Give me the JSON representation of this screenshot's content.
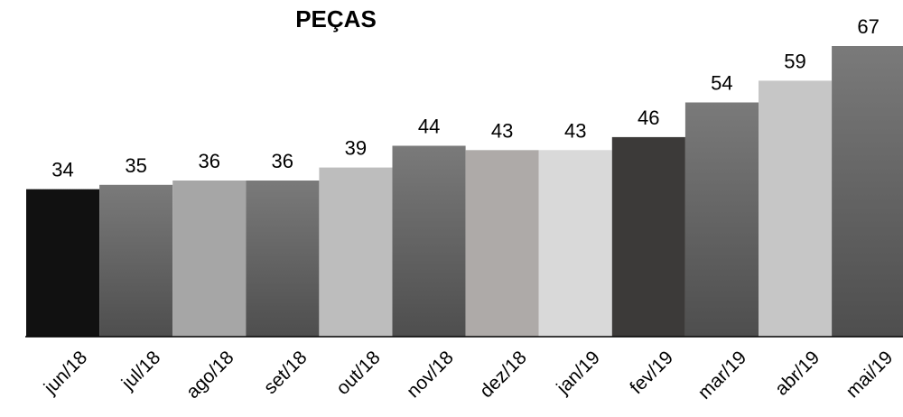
{
  "chart_data": {
    "type": "bar",
    "title": "PEÇAS",
    "xlabel": "",
    "ylabel": "",
    "categories": [
      "jun/18",
      "jul/18",
      "ago/18",
      "set/18",
      "out/18",
      "nov/18",
      "dez/18",
      "jan/19",
      "fev/19",
      "mar/19",
      "abr/19",
      "mai/19"
    ],
    "values": [
      34,
      35,
      36,
      36,
      39,
      44,
      43,
      43,
      46,
      54,
      59,
      67
    ],
    "colors": [
      [
        "#111111",
        "#111111"
      ],
      [
        "#7a7a7a",
        "#4e4e4e"
      ],
      [
        "#a6a6a6",
        "#a6a6a6"
      ],
      [
        "#7a7a7a",
        "#4e4e4e"
      ],
      [
        "#bdbdbd",
        "#bdbdbd"
      ],
      [
        "#7a7a7a",
        "#4e4e4e"
      ],
      [
        "#aeaaa8",
        "#aeaaa8"
      ],
      [
        "#d9d9d9",
        "#d9d9d9"
      ],
      [
        "#3c3a39",
        "#3c3a39"
      ],
      [
        "#7a7a7a",
        "#4e4e4e"
      ],
      [
        "#c6c6c6",
        "#c6c6c6"
      ],
      [
        "#7a7a7a",
        "#4e4e4e"
      ]
    ],
    "ylim": [
      0,
      67
    ],
    "grid": false,
    "legend": "none"
  }
}
